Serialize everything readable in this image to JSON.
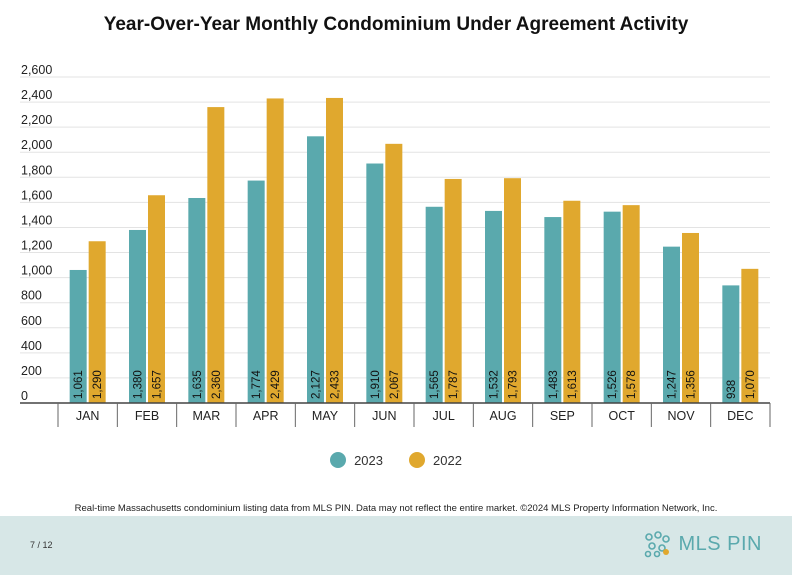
{
  "title": "Year-Over-Year Monthly Condominium Under Agreement Activity",
  "footnote": "Real-time Massachusetts condominium listing data from MLS PIN. Data may not reflect the entire market. ©2024 MLS Property Information Network, Inc.",
  "page_number": "7 / 12",
  "logo": {
    "text": "MLS PIN",
    "icon": "mls-pin-logo-icon"
  },
  "colors": {
    "series_2023": "#5aa9ad",
    "series_2022": "#e0a82e"
  },
  "chart_data": {
    "type": "bar",
    "title": "Year-Over-Year Monthly Condominium Under Agreement Activity",
    "xlabel": "",
    "ylabel": "",
    "ylim": [
      0,
      2600
    ],
    "yticks": [
      0,
      200,
      400,
      600,
      800,
      1000,
      1200,
      1400,
      1600,
      1800,
      2000,
      2200,
      2400,
      2600
    ],
    "ytick_labels": [
      "0",
      "200",
      "400",
      "600",
      "800",
      "1,000",
      "1,200",
      "1,400",
      "1,600",
      "1,800",
      "2,000",
      "2,200",
      "2,400",
      "2,600"
    ],
    "grid": true,
    "legend": "bottom",
    "categories": [
      "JAN",
      "FEB",
      "MAR",
      "APR",
      "MAY",
      "JUN",
      "JUL",
      "AUG",
      "SEP",
      "OCT",
      "NOV",
      "DEC"
    ],
    "series": [
      {
        "name": "2023",
        "color": "#5aa9ad",
        "values": [
          1061,
          1380,
          1635,
          1774,
          2127,
          1910,
          1565,
          1532,
          1483,
          1526,
          1247,
          938
        ],
        "labels": [
          "1,061",
          "1,380",
          "1,635",
          "1,774",
          "2,127",
          "1,910",
          "1,565",
          "1,532",
          "1,483",
          "1,526",
          "1,247",
          "938"
        ]
      },
      {
        "name": "2022",
        "color": "#e0a82e",
        "values": [
          1290,
          1657,
          2360,
          2429,
          2433,
          2067,
          1787,
          1793,
          1613,
          1578,
          1356,
          1070
        ],
        "labels": [
          "1,290",
          "1,657",
          "2,360",
          "2,429",
          "2,433",
          "2,067",
          "1,787",
          "1,793",
          "1,613",
          "1,578",
          "1,356",
          "1,070"
        ]
      }
    ]
  }
}
